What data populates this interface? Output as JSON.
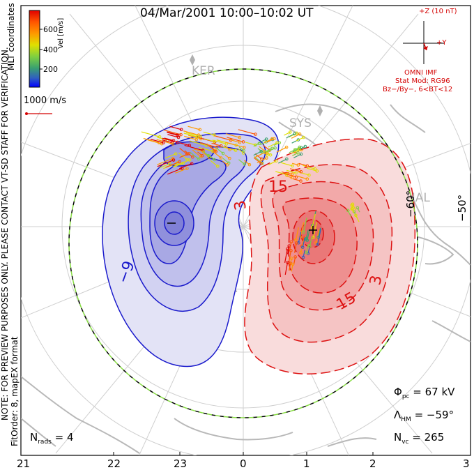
{
  "title": "04/Mar/2001  10:00–10:02  UT",
  "colorbar": {
    "title": "Vel [m/s]",
    "ticks": [
      "600",
      "400",
      "200"
    ],
    "colors": [
      "#0000ff",
      "#3060c0",
      "#3aa070",
      "#80d040",
      "#e0e000",
      "#ff9900",
      "#ff5500",
      "#e00000"
    ]
  },
  "side_notes": {
    "coords": "MLT coordinates",
    "preview": "NOTE: FOR PREVIEW PURPOSES ONLY. PLEASE CONTACT VT-SD STAFF FOR VERIFICATION.",
    "fitorder": "FitOrder: 8, mapEX format"
  },
  "scale_vector": {
    "label": "1000 m/s"
  },
  "imf": {
    "top": "+Z (10 nT)",
    "y": "+Y",
    "source": "OMNI IMF",
    "model": "Stat Mod: RG96",
    "condition": "Bz−/By−, 6<BT<12"
  },
  "stations": [
    "KER",
    "SYS",
    "HAL"
  ],
  "lat_labels": [
    "−60°",
    "−50°"
  ],
  "contour_labels": {
    "neg": "−9",
    "pos1": "3",
    "pos2": "15",
    "pos3": "15",
    "pos4": "3",
    "neg2": "3"
  },
  "extrema": {
    "min": "−",
    "max": "+"
  },
  "stats": {
    "phi": {
      "sym": "Φ",
      "sub": "pc",
      "val": "= 67 kV"
    },
    "lat": {
      "sym": "Λ",
      "sub": "HM",
      "val": "= −59°"
    },
    "nvc": {
      "sym": "N",
      "sub": "vc",
      "val": "= 265"
    },
    "nrads": {
      "sym": "N",
      "sub": "rads",
      "val": "= 4"
    }
  },
  "mlt_ticks": [
    "21",
    "22",
    "23",
    "0",
    "1",
    "2",
    "3"
  ],
  "colors": {
    "negative": "#1a1acc",
    "positive": "#dd1111",
    "boundary": "#88dd44"
  }
}
